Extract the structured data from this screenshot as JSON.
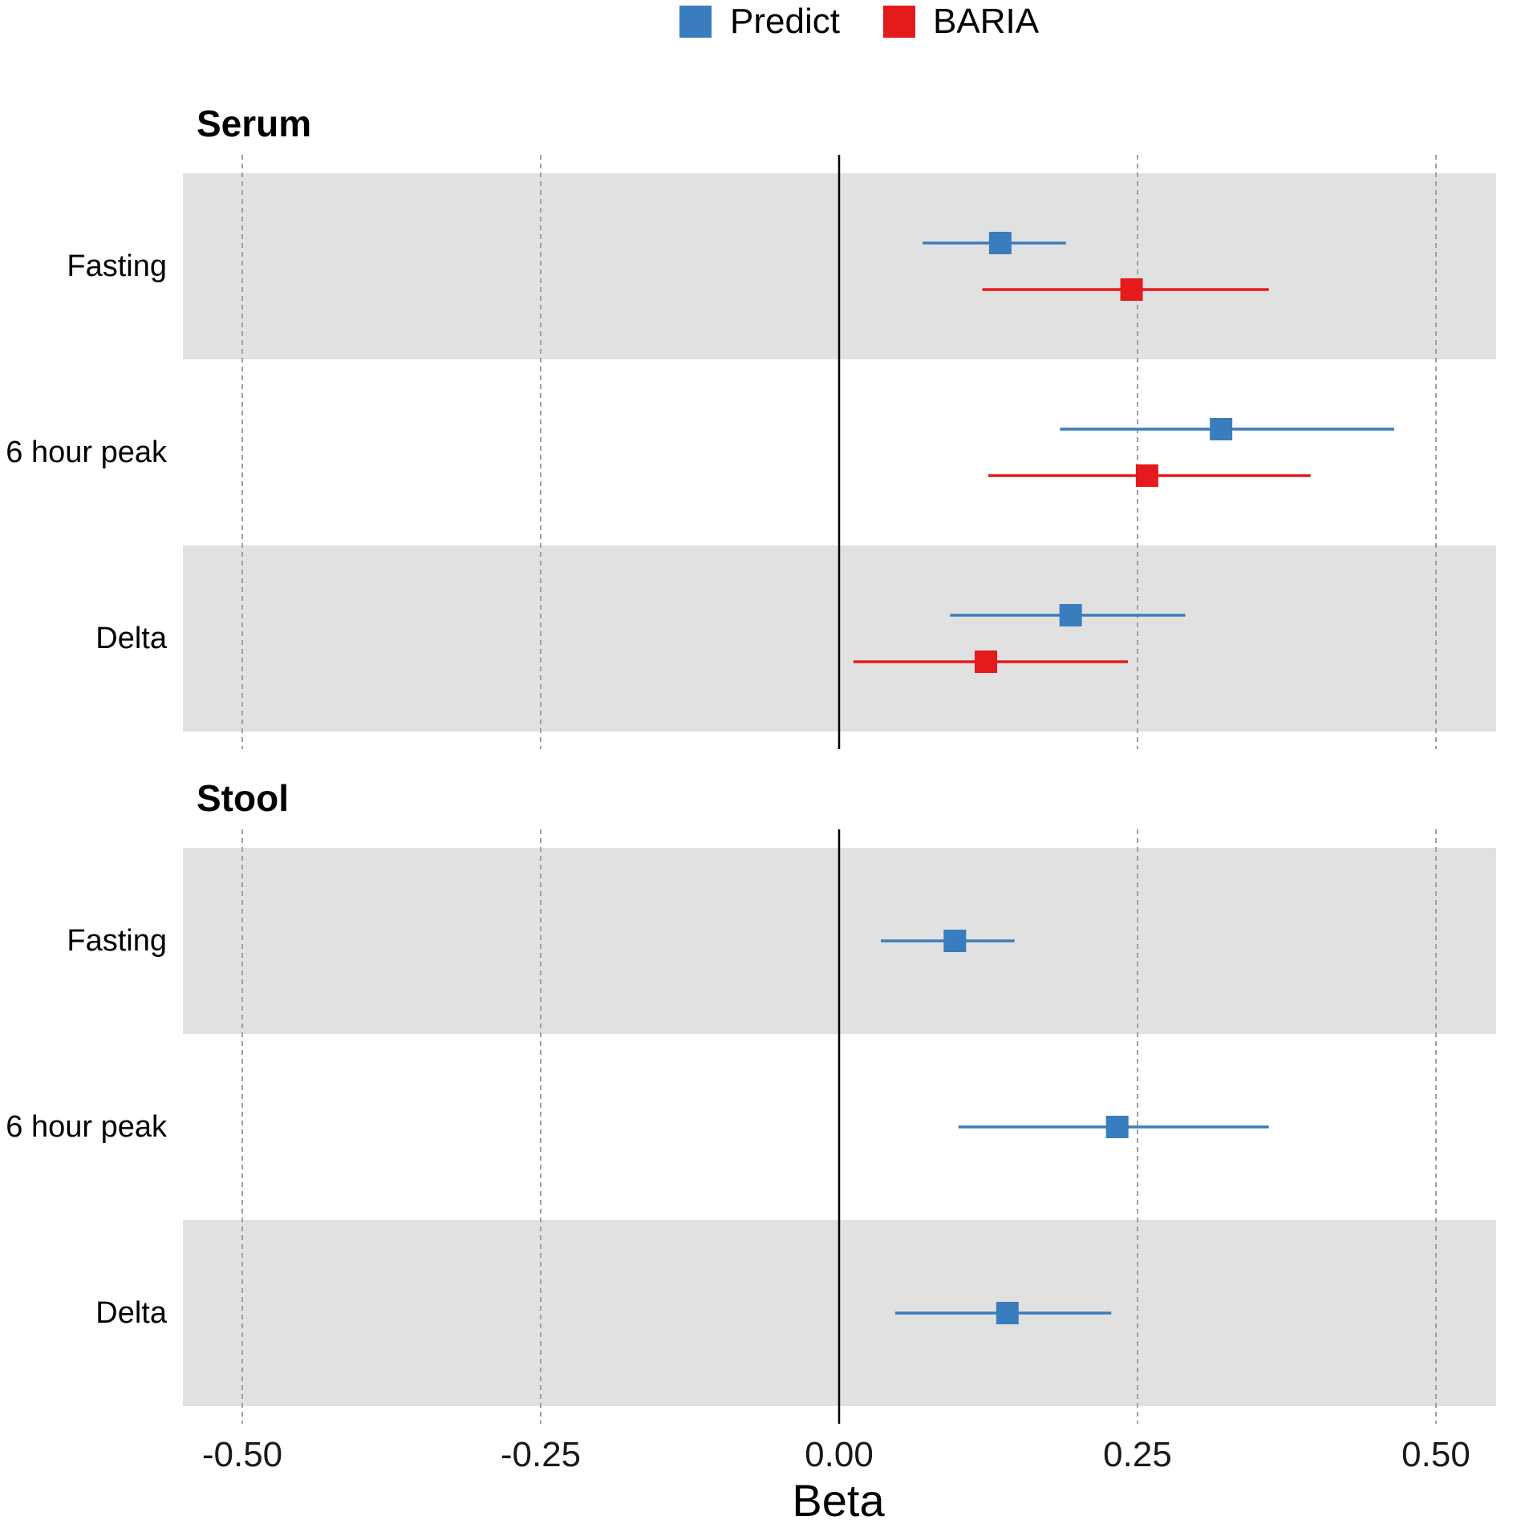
{
  "chart_data": {
    "type": "forest",
    "xlabel": "Beta",
    "xlim": [
      -0.55,
      0.55
    ],
    "x_ticks": [
      -0.5,
      -0.25,
      0.0,
      0.25,
      0.5
    ],
    "x_tick_labels": [
      "-0.50",
      "-0.25",
      "0.00",
      "0.25",
      "0.50"
    ],
    "reference_line": 0,
    "grid": "dashed vertical",
    "legend_position": "top",
    "legend": [
      {
        "name": "Predict",
        "color": "#3a7dbf"
      },
      {
        "name": "BARIA",
        "color": "#e41a1c"
      }
    ],
    "panels": [
      {
        "title": "Serum",
        "rows": [
          {
            "label": "Fasting",
            "shaded": true,
            "estimates": [
              {
                "series": "Predict",
                "beta": 0.135,
                "lo": 0.07,
                "hi": 0.19
              },
              {
                "series": "BARIA",
                "beta": 0.245,
                "lo": 0.12,
                "hi": 0.36
              }
            ]
          },
          {
            "label": "6 hour peak",
            "shaded": false,
            "estimates": [
              {
                "series": "Predict",
                "beta": 0.32,
                "lo": 0.185,
                "hi": 0.465
              },
              {
                "series": "BARIA",
                "beta": 0.258,
                "lo": 0.125,
                "hi": 0.395
              }
            ]
          },
          {
            "label": "Delta",
            "shaded": true,
            "estimates": [
              {
                "series": "Predict",
                "beta": 0.194,
                "lo": 0.093,
                "hi": 0.29
              },
              {
                "series": "BARIA",
                "beta": 0.123,
                "lo": 0.012,
                "hi": 0.242
              }
            ]
          }
        ]
      },
      {
        "title": "Stool",
        "rows": [
          {
            "label": "Fasting",
            "shaded": true,
            "estimates": [
              {
                "series": "Predict",
                "beta": 0.097,
                "lo": 0.035,
                "hi": 0.147
              }
            ]
          },
          {
            "label": "6 hour peak",
            "shaded": false,
            "estimates": [
              {
                "series": "Predict",
                "beta": 0.233,
                "lo": 0.1,
                "hi": 0.36
              }
            ]
          },
          {
            "label": "Delta",
            "shaded": true,
            "estimates": [
              {
                "series": "Predict",
                "beta": 0.141,
                "lo": 0.047,
                "hi": 0.228
              }
            ]
          }
        ]
      }
    ]
  }
}
